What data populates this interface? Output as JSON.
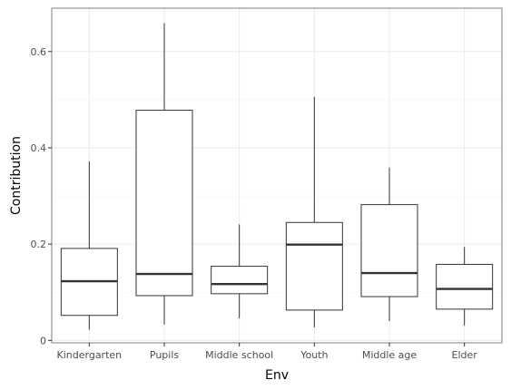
{
  "chart_data": {
    "type": "boxplot",
    "xlabel": "Env",
    "ylabel": "Contribution",
    "ylim": [
      -0.005,
      0.69
    ],
    "yticks": [
      0,
      0.2,
      0.4,
      0.6
    ],
    "ytick_labels": [
      "0",
      "0.2",
      "0.4",
      "0.6"
    ],
    "grid": true,
    "categories": [
      "Kindergarten",
      "Pupils",
      "Middle school",
      "Youth",
      "Middle age",
      "Elder"
    ],
    "boxes": [
      {
        "category": "Kindergarten",
        "min": 0.022,
        "q1": 0.052,
        "median": 0.123,
        "q3": 0.191,
        "max": 0.372
      },
      {
        "category": "Pupils",
        "min": 0.033,
        "q1": 0.093,
        "median": 0.138,
        "q3": 0.478,
        "max": 0.659
      },
      {
        "category": "Middle school",
        "min": 0.046,
        "q1": 0.097,
        "median": 0.117,
        "q3": 0.154,
        "max": 0.241
      },
      {
        "category": "Youth",
        "min": 0.027,
        "q1": 0.063,
        "median": 0.199,
        "q3": 0.245,
        "max": 0.506
      },
      {
        "category": "Middle age",
        "min": 0.04,
        "q1": 0.091,
        "median": 0.14,
        "q3": 0.282,
        "max": 0.359
      },
      {
        "category": "Elder",
        "min": 0.031,
        "q1": 0.065,
        "median": 0.107,
        "q3": 0.158,
        "max": 0.194
      }
    ],
    "colors": {
      "box_fill": "#ffffff",
      "box_stroke": "#333333",
      "panel_border": "#7f7f7f",
      "grid_major": "#ebebeb",
      "grid_minor": "#f5f5f5",
      "tick_label": "#4d4d4d"
    }
  }
}
